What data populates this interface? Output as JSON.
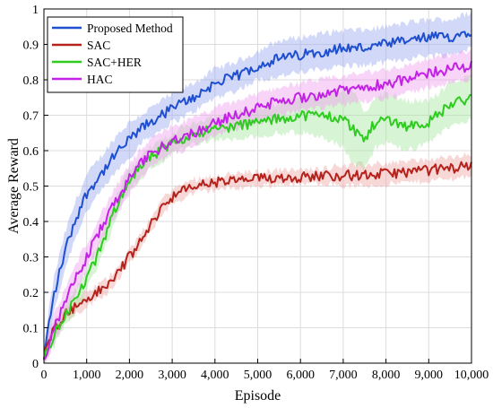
{
  "chart_data": {
    "type": "line",
    "xlabel": "Episode",
    "ylabel": "Average Reward",
    "xlim": [
      0,
      10000
    ],
    "ylim": [
      0,
      1
    ],
    "xticks": [
      0,
      1000,
      2000,
      3000,
      4000,
      5000,
      6000,
      7000,
      8000,
      9000,
      10000
    ],
    "xtick_labels": [
      "0",
      "1,000",
      "2,000",
      "3,000",
      "4,000",
      "5,000",
      "6,000",
      "7,000",
      "8,000",
      "9,000",
      "10,000"
    ],
    "yticks": [
      0,
      0.1,
      0.2,
      0.3,
      0.4,
      0.5,
      0.6,
      0.7,
      0.8,
      0.9,
      1
    ],
    "ytick_labels": [
      "0",
      "0.1",
      "0.2",
      "0.3",
      "0.4",
      "0.5",
      "0.6",
      "0.7",
      "0.8",
      "0.9",
      "1"
    ],
    "grid": true,
    "legend_position": "top-left",
    "shaded_band": true,
    "series": [
      {
        "name": "Proposed Method",
        "color": "#1f4fd1",
        "band_color": "#9aa8f0",
        "x": [
          0,
          100,
          250,
          500,
          750,
          1000,
          1250,
          1500,
          1750,
          2000,
          2250,
          2500,
          2750,
          3000,
          3500,
          4000,
          4500,
          5000,
          5500,
          6000,
          6500,
          7000,
          7500,
          8000,
          8500,
          9000,
          9500,
          10000
        ],
        "y": [
          0.01,
          0.1,
          0.2,
          0.32,
          0.41,
          0.48,
          0.52,
          0.56,
          0.6,
          0.63,
          0.66,
          0.68,
          0.7,
          0.72,
          0.75,
          0.79,
          0.81,
          0.84,
          0.86,
          0.87,
          0.88,
          0.89,
          0.89,
          0.9,
          0.91,
          0.92,
          0.92,
          0.94
        ],
        "band": [
          0.02,
          0.04,
          0.05,
          0.05,
          0.05,
          0.05,
          0.05,
          0.05,
          0.05,
          0.05,
          0.04,
          0.04,
          0.04,
          0.04,
          0.04,
          0.04,
          0.04,
          0.04,
          0.05,
          0.05,
          0.05,
          0.05,
          0.05,
          0.05,
          0.05,
          0.05,
          0.05,
          0.05
        ]
      },
      {
        "name": "SAC",
        "color": "#b5221b",
        "band_color": "#f0a6a6",
        "x": [
          0,
          100,
          250,
          500,
          750,
          1000,
          1250,
          1500,
          1750,
          2000,
          2250,
          2500,
          2750,
          3000,
          3500,
          4000,
          4500,
          5000,
          5500,
          6000,
          6500,
          7000,
          7500,
          8000,
          8500,
          9000,
          9500,
          10000
        ],
        "y": [
          0.01,
          0.06,
          0.1,
          0.14,
          0.16,
          0.18,
          0.2,
          0.22,
          0.26,
          0.3,
          0.34,
          0.39,
          0.44,
          0.47,
          0.5,
          0.51,
          0.515,
          0.52,
          0.525,
          0.525,
          0.53,
          0.53,
          0.53,
          0.535,
          0.54,
          0.545,
          0.55,
          0.56
        ],
        "band": [
          0.01,
          0.02,
          0.02,
          0.02,
          0.02,
          0.02,
          0.02,
          0.02,
          0.02,
          0.02,
          0.02,
          0.02,
          0.02,
          0.02,
          0.02,
          0.02,
          0.02,
          0.02,
          0.02,
          0.02,
          0.02,
          0.03,
          0.03,
          0.03,
          0.03,
          0.03,
          0.03,
          0.03
        ]
      },
      {
        "name": "SAC+HER",
        "color": "#2ecc1f",
        "band_color": "#a6e6a0",
        "x": [
          0,
          100,
          250,
          500,
          750,
          1000,
          1250,
          1500,
          1750,
          2000,
          2250,
          2500,
          2750,
          3000,
          3500,
          4000,
          4500,
          5000,
          5500,
          6000,
          6500,
          7000,
          7250,
          7500,
          7750,
          8000,
          8500,
          9000,
          9500,
          10000
        ],
        "y": [
          0.01,
          0.04,
          0.08,
          0.14,
          0.18,
          0.24,
          0.3,
          0.38,
          0.46,
          0.52,
          0.55,
          0.58,
          0.6,
          0.62,
          0.65,
          0.66,
          0.67,
          0.68,
          0.69,
          0.7,
          0.7,
          0.69,
          0.66,
          0.63,
          0.68,
          0.69,
          0.67,
          0.68,
          0.73,
          0.75
        ],
        "band": [
          0.01,
          0.02,
          0.03,
          0.03,
          0.03,
          0.03,
          0.03,
          0.03,
          0.03,
          0.03,
          0.03,
          0.03,
          0.03,
          0.03,
          0.03,
          0.03,
          0.04,
          0.04,
          0.04,
          0.05,
          0.06,
          0.08,
          0.1,
          0.08,
          0.07,
          0.07,
          0.07,
          0.06,
          0.06,
          0.06
        ]
      },
      {
        "name": "HAC",
        "color": "#c322e6",
        "band_color": "#f0a0f0",
        "x": [
          0,
          100,
          250,
          500,
          750,
          1000,
          1250,
          1500,
          1750,
          2000,
          2250,
          2500,
          2750,
          3000,
          3500,
          4000,
          4500,
          5000,
          5500,
          6000,
          6500,
          7000,
          7500,
          8000,
          8500,
          9000,
          9500,
          10000
        ],
        "y": [
          0.01,
          0.05,
          0.1,
          0.17,
          0.24,
          0.3,
          0.36,
          0.42,
          0.47,
          0.52,
          0.56,
          0.59,
          0.61,
          0.63,
          0.65,
          0.68,
          0.7,
          0.72,
          0.74,
          0.75,
          0.76,
          0.77,
          0.78,
          0.79,
          0.8,
          0.82,
          0.83,
          0.84
        ],
        "band": [
          0.01,
          0.03,
          0.04,
          0.04,
          0.04,
          0.04,
          0.04,
          0.04,
          0.04,
          0.04,
          0.04,
          0.04,
          0.04,
          0.04,
          0.04,
          0.04,
          0.04,
          0.04,
          0.04,
          0.04,
          0.04,
          0.04,
          0.04,
          0.04,
          0.04,
          0.04,
          0.04,
          0.04
        ]
      }
    ]
  }
}
